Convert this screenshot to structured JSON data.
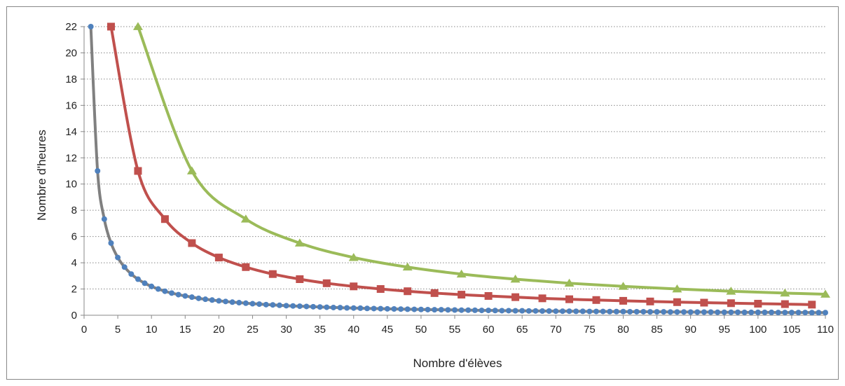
{
  "chart_data": {
    "type": "line",
    "title": "",
    "xlabel": "Nombre d'élèves",
    "ylabel": "Nombre d'heures",
    "xlim": [
      0,
      110
    ],
    "ylim": [
      0,
      22
    ],
    "x_ticks": [
      0,
      5,
      10,
      15,
      20,
      25,
      30,
      35,
      40,
      45,
      50,
      55,
      60,
      65,
      70,
      75,
      80,
      85,
      90,
      95,
      100,
      105,
      110
    ],
    "y_ticks": [
      0,
      2,
      4,
      6,
      8,
      10,
      12,
      14,
      16,
      18,
      20,
      22
    ],
    "grid": "horizontal-dotted",
    "legend": "none",
    "series": [
      {
        "color": "#808080",
        "marker": "circle",
        "marker_color": "#4f81bd",
        "x": [
          1,
          2,
          3,
          4,
          5,
          6,
          7,
          8,
          9,
          10,
          11,
          12,
          13,
          14,
          15,
          16,
          17,
          18,
          19,
          20,
          21,
          22,
          23,
          24,
          25,
          26,
          27,
          28,
          29,
          30,
          31,
          32,
          33,
          34,
          35,
          36,
          37,
          38,
          39,
          40,
          41,
          42,
          43,
          44,
          45,
          46,
          47,
          48,
          49,
          50,
          51,
          52,
          53,
          54,
          55,
          56,
          57,
          58,
          59,
          60,
          61,
          62,
          63,
          64,
          65,
          66,
          67,
          68,
          69,
          70,
          71,
          72,
          73,
          74,
          75,
          76,
          77,
          78,
          79,
          80,
          81,
          82,
          83,
          84,
          85,
          86,
          87,
          88,
          89,
          90,
          91,
          92,
          93,
          94,
          95,
          96,
          97,
          98,
          99,
          100,
          101,
          102,
          103,
          104,
          105,
          106,
          107,
          108,
          109,
          110
        ],
        "y": [
          22,
          11,
          7.33,
          5.5,
          4.4,
          3.67,
          3.14,
          2.75,
          2.44,
          2.2,
          2,
          1.83,
          1.69,
          1.57,
          1.47,
          1.38,
          1.29,
          1.22,
          1.16,
          1.1,
          1.05,
          1,
          0.96,
          0.92,
          0.88,
          0.85,
          0.81,
          0.79,
          0.76,
          0.73,
          0.71,
          0.69,
          0.67,
          0.65,
          0.63,
          0.61,
          0.59,
          0.58,
          0.56,
          0.55,
          0.54,
          0.52,
          0.51,
          0.5,
          0.49,
          0.48,
          0.47,
          0.46,
          0.45,
          0.44,
          0.43,
          0.42,
          0.42,
          0.41,
          0.4,
          0.39,
          0.39,
          0.38,
          0.37,
          0.37,
          0.36,
          0.35,
          0.35,
          0.34,
          0.34,
          0.33,
          0.33,
          0.32,
          0.32,
          0.31,
          0.31,
          0.31,
          0.3,
          0.3,
          0.29,
          0.29,
          0.29,
          0.28,
          0.28,
          0.28,
          0.27,
          0.27,
          0.27,
          0.26,
          0.26,
          0.26,
          0.25,
          0.25,
          0.25,
          0.24,
          0.24,
          0.24,
          0.24,
          0.23,
          0.23,
          0.23,
          0.23,
          0.22,
          0.22,
          0.22,
          0.22,
          0.22,
          0.21,
          0.21,
          0.21,
          0.21,
          0.21,
          0.2,
          0.2,
          0.2
        ]
      },
      {
        "color": "#c0504d",
        "marker": "square",
        "marker_color": "#c0504d",
        "x": [
          4,
          8,
          12,
          16,
          20,
          24,
          28,
          32,
          36,
          40,
          44,
          48,
          52,
          56,
          60,
          64,
          68,
          72,
          76,
          80,
          84,
          88,
          92,
          96,
          100,
          104,
          108
        ],
        "y": [
          22,
          11,
          7.33,
          5.5,
          4.4,
          3.67,
          3.14,
          2.75,
          2.44,
          2.2,
          2,
          1.83,
          1.69,
          1.57,
          1.47,
          1.38,
          1.29,
          1.22,
          1.16,
          1.1,
          1.05,
          1,
          0.96,
          0.92,
          0.88,
          0.85,
          0.81
        ]
      },
      {
        "color": "#9bbb59",
        "marker": "triangle",
        "marker_color": "#9bbb59",
        "x": [
          8,
          16,
          24,
          32,
          40,
          48,
          56,
          64,
          72,
          80,
          88,
          96,
          104,
          110
        ],
        "y": [
          22,
          11,
          7.33,
          5.5,
          4.4,
          3.67,
          3.14,
          2.75,
          2.44,
          2.2,
          2,
          1.83,
          1.69,
          1.6
        ]
      }
    ]
  }
}
